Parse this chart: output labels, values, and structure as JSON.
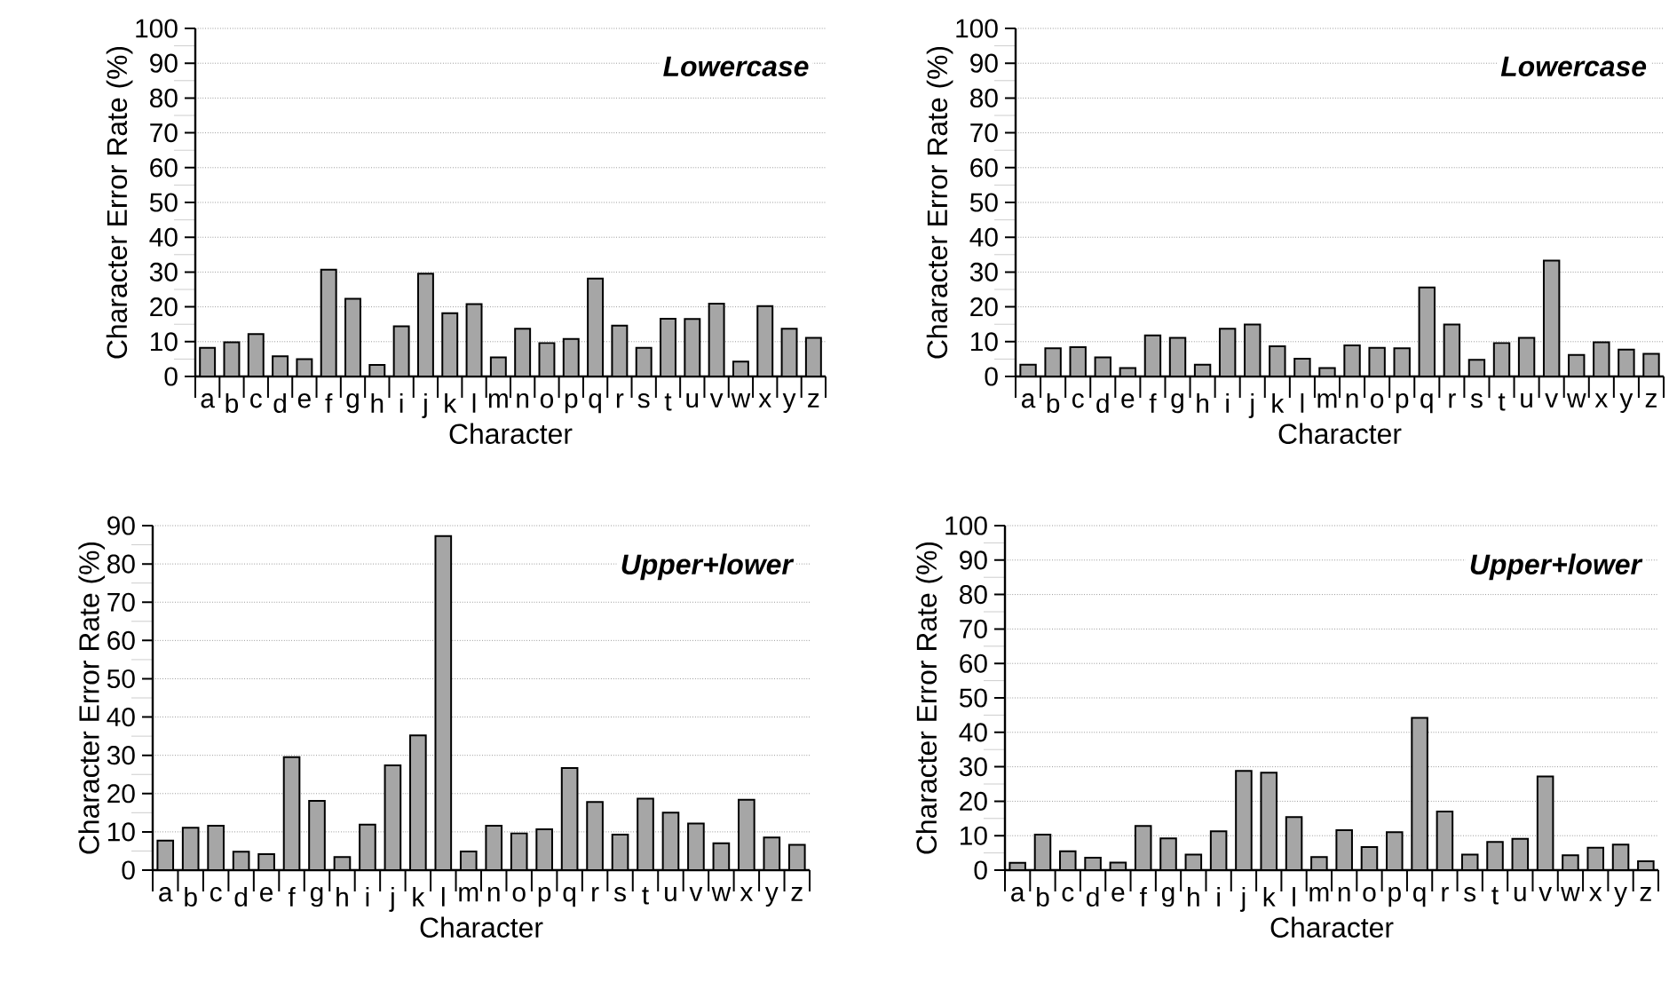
{
  "chart_data": [
    {
      "type": "bar",
      "title": "Lowercase",
      "xlabel": "Character",
      "ylabel": "Character Error Rate (%)",
      "categories": [
        "a",
        "b",
        "c",
        "d",
        "e",
        "f",
        "g",
        "h",
        "i",
        "j",
        "k",
        "l",
        "m",
        "n",
        "o",
        "p",
        "q",
        "r",
        "s",
        "t",
        "u",
        "v",
        "w",
        "x",
        "y",
        "z"
      ],
      "values": [
        8.2,
        9.8,
        12.2,
        5.8,
        5,
        30.7,
        22.3,
        3.3,
        14.4,
        29.5,
        18.2,
        20.8,
        5.5,
        13.7,
        9.6,
        10.8,
        28.1,
        14.6,
        8.2,
        16.6,
        16.5,
        20.9,
        4.3,
        20.2,
        13.7,
        11.1
      ],
      "color": "#a6a6a6",
      "ylim": [
        0,
        100
      ],
      "yticks": [
        0,
        10,
        20,
        30,
        40,
        50,
        60,
        70,
        80,
        90,
        100
      ],
      "grid": "y"
    },
    {
      "type": "bar",
      "title": "Lowercase",
      "xlabel": "Character",
      "ylabel": "Character Error Rate (%)",
      "categories": [
        "a",
        "b",
        "c",
        "d",
        "e",
        "f",
        "g",
        "h",
        "i",
        "j",
        "k",
        "l",
        "m",
        "n",
        "o",
        "p",
        "q",
        "r",
        "s",
        "t",
        "u",
        "v",
        "w",
        "x",
        "y",
        "z"
      ],
      "values": [
        3.4,
        8.1,
        8.4,
        5.5,
        2.4,
        11.8,
        11.1,
        3.4,
        13.7,
        14.9,
        8.7,
        5.1,
        2.4,
        8.9,
        8.2,
        8.1,
        25.6,
        14.9,
        4.8,
        9.6,
        11.1,
        33.3,
        6.2,
        9.8,
        7.7,
        6.5
      ],
      "color": "#a6a6a6",
      "ylim": [
        0,
        100
      ],
      "yticks": [
        0,
        10,
        20,
        30,
        40,
        50,
        60,
        70,
        80,
        90,
        100
      ],
      "grid": "y"
    },
    {
      "type": "bar",
      "title": "Upper+lower",
      "xlabel": "Character",
      "ylabel": "Character Error Rate (%)",
      "categories": [
        "a",
        "b",
        "c",
        "d",
        "e",
        "f",
        "g",
        "h",
        "i",
        "j",
        "k",
        "l",
        "m",
        "n",
        "o",
        "p",
        "q",
        "r",
        "s",
        "t",
        "u",
        "v",
        "w",
        "x",
        "y",
        "z"
      ],
      "values": [
        7.7,
        11.1,
        11.6,
        4.8,
        4.2,
        29.5,
        18.1,
        3.4,
        11.9,
        27.4,
        35.2,
        87.3,
        4.9,
        11.6,
        9.6,
        10.7,
        26.7,
        17.8,
        9.3,
        18.7,
        15,
        12.2,
        7,
        18.4,
        8.5,
        6.6
      ],
      "color": "#a6a6a6",
      "ylim": [
        0,
        90
      ],
      "yticks": [
        0,
        10,
        20,
        30,
        40,
        50,
        60,
        70,
        80,
        90
      ],
      "grid": "y"
    },
    {
      "type": "bar",
      "title": "Upper+lower",
      "xlabel": "Character",
      "ylabel": "Character Error Rate (%)",
      "categories": [
        "a",
        "b",
        "c",
        "d",
        "e",
        "f",
        "g",
        "h",
        "i",
        "j",
        "k",
        "l",
        "m",
        "n",
        "o",
        "p",
        "q",
        "r",
        "s",
        "t",
        "u",
        "v",
        "w",
        "x",
        "y",
        "z"
      ],
      "values": [
        2.1,
        10.3,
        5.5,
        3.6,
        2.2,
        12.8,
        9.2,
        4.5,
        11.3,
        28.8,
        28.3,
        15.4,
        3.8,
        11.6,
        6.7,
        11,
        44.2,
        17,
        4.5,
        8.2,
        9.1,
        27.2,
        4.3,
        6.5,
        7.4,
        2.6
      ],
      "color": "#a6a6a6",
      "ylim": [
        0,
        100
      ],
      "yticks": [
        0,
        10,
        20,
        30,
        40,
        50,
        60,
        70,
        80,
        90,
        100
      ],
      "grid": "y"
    }
  ]
}
